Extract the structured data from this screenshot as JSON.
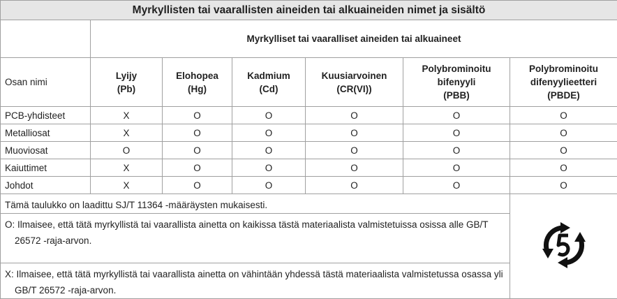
{
  "title": "Myrkyllisten tai vaarallisten aineiden tai alkuaineiden nimet ja sisältö",
  "group_header": "Myrkylliset tai vaaralliset aineiden tai alkuaineet",
  "table": {
    "columns": [
      [
        "Osan nimi"
      ],
      [
        "Lyijy",
        "(Pb)"
      ],
      [
        "Elohopea",
        "(Hg)"
      ],
      [
        "Kadmium",
        "(Cd)"
      ],
      [
        "Kuusiarvoinen",
        "(CR(VI))"
      ],
      [
        "Polybrominoitu",
        "bifenyyli",
        "(PBB)"
      ],
      [
        "Polybrominoitu",
        "difenyylieetteri",
        "(PBDE)"
      ]
    ],
    "rows": [
      [
        "PCB-yhdisteet",
        "X",
        "O",
        "O",
        "O",
        "O",
        "O"
      ],
      [
        "Metalliosat",
        "X",
        "O",
        "O",
        "O",
        "O",
        "O"
      ],
      [
        "Muoviosat",
        "O",
        "O",
        "O",
        "O",
        "O",
        "O"
      ],
      [
        "Kaiuttimet",
        "X",
        "O",
        "O",
        "O",
        "O",
        "O"
      ],
      [
        "Johdot",
        "X",
        "O",
        "O",
        "O",
        "O",
        "O"
      ]
    ]
  },
  "notes": [
    "Tämä taulukko on laadittu SJ/T 11364 -määräysten mukaisesti.",
    "O: Ilmaisee, että tätä myrkyllistä tai vaarallista ainetta on kaikissa tästä materiaalista valmistetuissa osissa alle GB/T 26572 -raja-arvon.",
    "X: Ilmaisee, että tätä myrkyllistä tai vaarallista ainetta on vähintään yhdessä tästä materiaalista valmistetussa osassa yli GB/T 26572 -raja-arvon."
  ]
}
